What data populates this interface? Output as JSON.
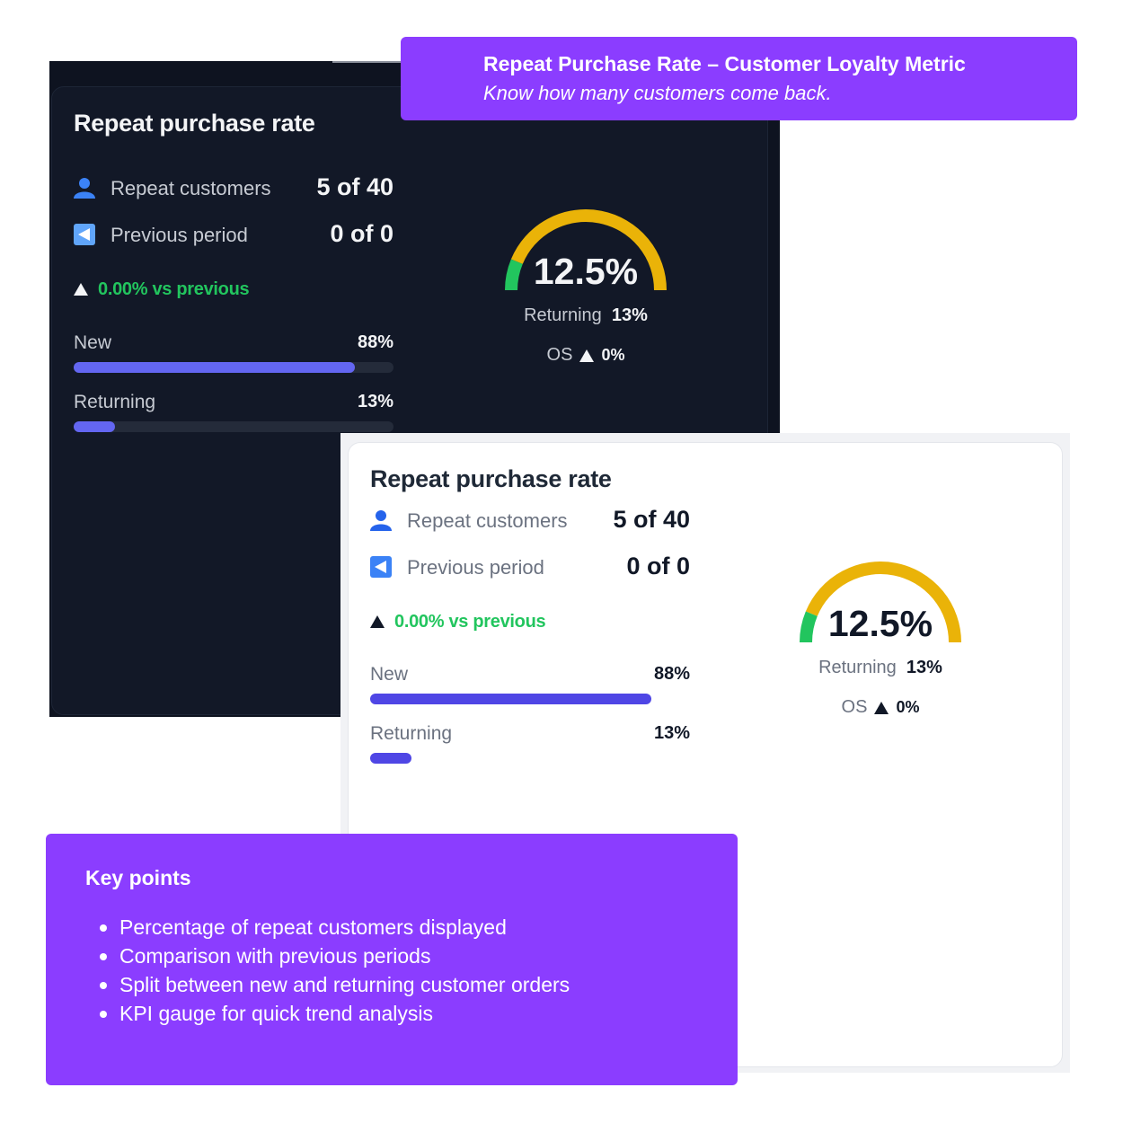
{
  "banner": {
    "title": "Repeat Purchase Rate – Customer Loyalty Metric",
    "subtitle": "Know how many customers come back."
  },
  "widget": {
    "title": "Repeat purchase rate",
    "repeat_customers_label": "Repeat customers",
    "repeat_customers_value": "5 of 40",
    "previous_period_label": "Previous period",
    "previous_period_value": "0 of 0",
    "trend_text": "0.00% vs previous",
    "new_label": "New",
    "new_pct": "88%",
    "new_fraction": 0.88,
    "returning_label": "Returning",
    "returning_pct": "13%",
    "returning_fraction": 0.13,
    "gauge_value": "12.5%",
    "gauge_fraction": 0.125,
    "gauge_returning_label": "Returning",
    "gauge_returning_pct": "13%",
    "os_label": "OS",
    "os_value": "0%",
    "icons": [
      "user-icon",
      "back-arrow-icon",
      "trend-up-icon"
    ],
    "colors": {
      "accent": "#6366f1",
      "positive": "#22c55e",
      "gauge_yellow": "#eab308",
      "gauge_green": "#22c55e"
    }
  },
  "key_points": {
    "title": "Key points",
    "items": [
      "Percentage of repeat customers displayed",
      "Comparison with previous periods",
      "Split between new and returning customer orders",
      "KPI gauge for quick trend analysis"
    ]
  },
  "callout_color": "#8b3dff"
}
